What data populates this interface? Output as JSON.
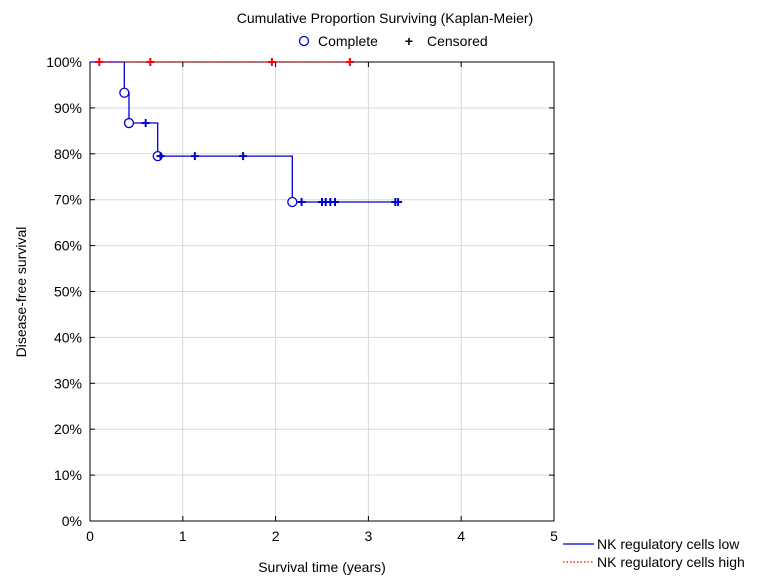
{
  "chart_data": {
    "type": "line",
    "title": "Cumulative Proportion Surviving (Kaplan-Meier)",
    "xlabel": "Survival  time (years)",
    "ylabel": "Disease-free survival",
    "xlim": [
      0,
      5
    ],
    "ylim": [
      0,
      1
    ],
    "x_ticks": [
      "0",
      "1",
      "2",
      "3",
      "4",
      "5"
    ],
    "y_ticks": [
      "0%",
      "10%",
      "20%",
      "30%",
      "40%",
      "50%",
      "60%",
      "70%",
      "80%",
      "90%",
      "100%"
    ],
    "grid": true,
    "marker_legend": {
      "complete_label": "Complete",
      "censored_label": "Censored",
      "complete_symbol": "○",
      "censored_symbol": "+"
    },
    "series": [
      {
        "name": "NK regulatory cells low",
        "color": "#0000cc",
        "line_style": "solid",
        "step": [
          [
            0,
            1.0
          ],
          [
            0.37,
            1.0
          ],
          [
            0.37,
            0.933
          ],
          [
            0.42,
            0.933
          ],
          [
            0.42,
            0.867
          ],
          [
            0.73,
            0.867
          ],
          [
            0.73,
            0.795
          ],
          [
            2.18,
            0.795
          ],
          [
            2.18,
            0.695
          ],
          [
            3.32,
            0.695
          ]
        ],
        "complete": [
          [
            0.37,
            0.933
          ],
          [
            0.42,
            0.867
          ],
          [
            0.73,
            0.795
          ],
          [
            2.18,
            0.695
          ]
        ],
        "censored": [
          [
            0.6,
            0.867
          ],
          [
            0.76,
            0.795
          ],
          [
            1.13,
            0.795
          ],
          [
            1.65,
            0.795
          ],
          [
            2.28,
            0.695
          ],
          [
            2.5,
            0.695
          ],
          [
            2.54,
            0.695
          ],
          [
            2.59,
            0.695
          ],
          [
            2.64,
            0.695
          ],
          [
            3.29,
            0.695
          ],
          [
            3.32,
            0.695
          ]
        ]
      },
      {
        "name": "NK regulatory cells high",
        "color": "#ff0000",
        "line_style": "dotted",
        "step": [
          [
            0.1,
            1.0
          ],
          [
            2.8,
            1.0
          ]
        ],
        "complete": [],
        "censored": [
          [
            0.1,
            1.0
          ],
          [
            0.65,
            1.0
          ],
          [
            1.96,
            1.0
          ],
          [
            2.8,
            1.0
          ]
        ]
      }
    ]
  }
}
